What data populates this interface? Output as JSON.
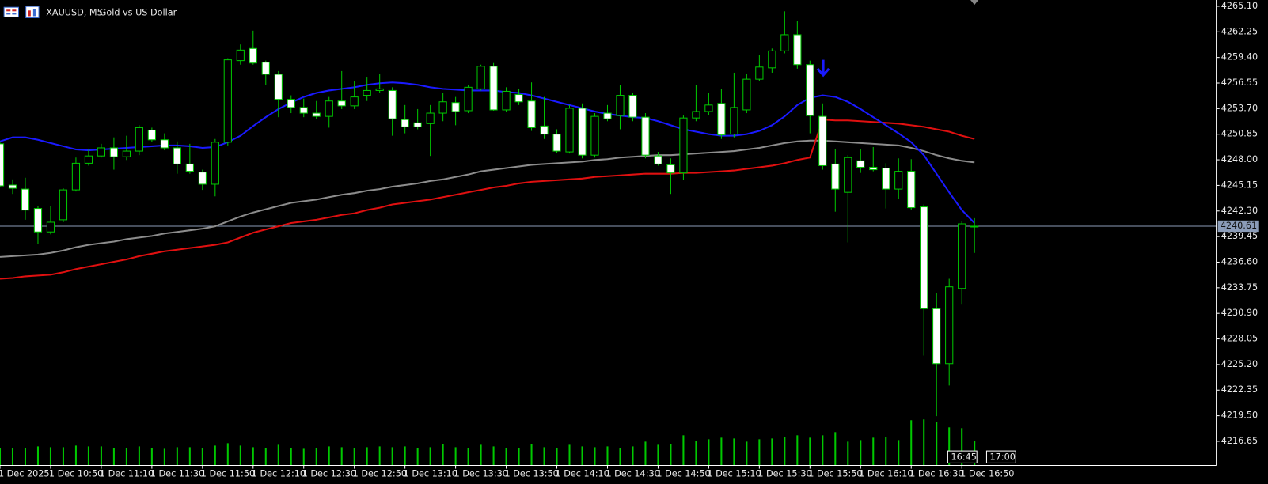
{
  "chart_data": {
    "type": "candlestick",
    "symbol": "XAUUSD, M5:",
    "description": "Gold vs US Dollar",
    "categories": [
      "1 Dec 2025",
      null,
      null,
      null,
      "1 Dec 10:50",
      null,
      null,
      null,
      "1 Dec 11:10",
      null,
      null,
      null,
      "1 Dec 11:30",
      null,
      null,
      null,
      "1 Dec 11:50",
      null,
      null,
      null,
      "1 Dec 12:10",
      null,
      null,
      null,
      "1 Dec 12:30",
      null,
      null,
      null,
      "1 Dec 12:50",
      null,
      null,
      null,
      "1 Dec 13:10",
      null,
      null,
      null,
      "1 Dec 13:30",
      null,
      null,
      null,
      "1 Dec 13:50",
      null,
      null,
      null,
      "1 Dec 14:10",
      null,
      null,
      null,
      "1 Dec 14:30",
      null,
      null,
      null,
      "1 Dec 14:50",
      null,
      null,
      null,
      "1 Dec 15:10",
      null,
      null,
      null,
      "1 Dec 15:30",
      null,
      null,
      null,
      "1 Dec 15:50",
      null,
      null,
      null,
      "1 Dec 16:10",
      null,
      null,
      null,
      "1 Dec 16:30",
      null,
      null,
      null,
      "1 Dec 16:50",
      null
    ],
    "open": [
      4249.78,
      4245.19,
      4244.74,
      4242.58,
      4239.97,
      4241.32,
      4244.65,
      4247.62,
      4248.43,
      4249.33,
      4248.34,
      4248.97,
      4251.31,
      4250.23,
      4249.33,
      4247.53,
      4246.63,
      4245.28,
      4249.96,
      4259.05,
      4260.4,
      4258.87,
      4257.52,
      4254.73,
      4253.83,
      4253.2,
      4252.84,
      4254.55,
      4254.01,
      4255.18,
      4255.72,
      4255.72,
      4252.48,
      4252.12,
      4252.03,
      4253.2,
      4254.37,
      4253.47,
      4255.9,
      4258.42,
      4253.56,
      4255.27,
      4254.55,
      4251.76,
      4250.86,
      4248.88,
      4253.74,
      4248.52,
      4253.2,
      4252.93,
      4255.18,
      4252.75,
      4248.43,
      4247.44,
      4246.54,
      4252.66,
      4253.38,
      4254.28,
      4250.86,
      4253.56,
      4256.98,
      4258.24,
      4260.13,
      4261.93,
      4258.6,
      4252.84,
      4247.53,
      4244.38,
      4247.89,
      4247.17,
      4247.08,
      4244.74,
      4246.72,
      4242.76,
      4231.42,
      4225.3,
      4233.67,
      4240.6
    ],
    "high": [
      4250.05,
      4245.82,
      4246.0,
      4242.85,
      4242.85,
      4244.83,
      4248.25,
      4249.15,
      4249.78,
      4250.5,
      4250.68,
      4251.85,
      4251.58,
      4250.95,
      4250.05,
      4249.78,
      4246.9,
      4250.32,
      4259.32,
      4260.85,
      4262.38,
      4259.05,
      4257.88,
      4255.18,
      4254.82,
      4254.55,
      4255.0,
      4257.88,
      4256.8,
      4257.25,
      4257.52,
      4256.08,
      4254.1,
      4253.65,
      4254.1,
      4255.45,
      4255.0,
      4256.35,
      4258.6,
      4258.78,
      4256.08,
      4255.9,
      4256.62,
      4255.0,
      4251.4,
      4254.1,
      4254.28,
      4253.2,
      4254.1,
      4256.35,
      4255.45,
      4253.2,
      4248.88,
      4248.16,
      4252.93,
      4256.35,
      4255.45,
      4255.9,
      4257.7,
      4257.52,
      4259.68,
      4260.4,
      4264.54,
      4263.46,
      4259.05,
      4254.28,
      4249.15,
      4248.52,
      4249.15,
      4249.42,
      4247.62,
      4248.16,
      4248.07,
      4243.03,
      4233.13,
      4234.75,
      4241.14,
      4241.5
    ],
    "low": [
      4244.92,
      4244.2,
      4241.32,
      4238.62,
      4239.7,
      4241.05,
      4244.47,
      4247.35,
      4248.25,
      4246.9,
      4247.98,
      4248.52,
      4249.96,
      4249.06,
      4246.45,
      4246.45,
      4244.65,
      4243.93,
      4249.6,
      4258.6,
      4258.6,
      4256.35,
      4252.75,
      4253.2,
      4252.75,
      4252.57,
      4251.58,
      4253.65,
      4253.65,
      4254.55,
      4255.45,
      4250.68,
      4250.95,
      4251.4,
      4248.43,
      4252.3,
      4251.85,
      4253.2,
      4255.72,
      4253.47,
      4253.38,
      4254.1,
      4251.22,
      4250.32,
      4248.79,
      4248.7,
      4248.16,
      4248.25,
      4252.3,
      4251.4,
      4252.3,
      4248.16,
      4247.35,
      4244.2,
      4245.73,
      4252.3,
      4253.02,
      4250.32,
      4250.5,
      4253.2,
      4256.8,
      4257.7,
      4259.86,
      4258.15,
      4250.95,
      4246.9,
      4242.22,
      4238.8,
      4246.54,
      4246.72,
      4242.58,
      4243.66,
      4242.4,
      4226.2,
      4219.45,
      4222.87,
      4231.87,
      4237.63
    ],
    "close": [
      4245.1,
      4244.83,
      4242.4,
      4239.97,
      4241.05,
      4244.65,
      4247.62,
      4248.43,
      4249.33,
      4248.34,
      4248.97,
      4251.58,
      4250.23,
      4249.33,
      4247.53,
      4246.72,
      4245.28,
      4249.96,
      4259.14,
      4260.22,
      4258.78,
      4257.52,
      4254.73,
      4253.83,
      4253.2,
      4252.84,
      4254.55,
      4254.01,
      4255.0,
      4255.72,
      4255.9,
      4252.57,
      4251.67,
      4251.67,
      4253.2,
      4254.46,
      4253.38,
      4256.08,
      4258.42,
      4253.56,
      4255.63,
      4254.46,
      4251.58,
      4250.86,
      4248.97,
      4253.74,
      4248.52,
      4252.84,
      4252.57,
      4255.18,
      4252.75,
      4248.52,
      4247.53,
      4246.54,
      4252.66,
      4253.38,
      4254.1,
      4250.77,
      4253.83,
      4256.98,
      4258.33,
      4260.13,
      4261.93,
      4258.6,
      4252.93,
      4247.35,
      4244.74,
      4248.25,
      4247.17,
      4246.9,
      4244.74,
      4246.72,
      4242.67,
      4231.42,
      4225.3,
      4233.85,
      4240.87,
      4240.61
    ],
    "bull_fill": "#000000",
    "bear_fill": "#ffffff",
    "candle_outline": "#00c800",
    "lines": [
      {
        "color": "#8c8c8c",
        "values": [
          4237.18,
          4237.27,
          4237.36,
          4237.45,
          4237.63,
          4237.9,
          4238.26,
          4238.53,
          4238.71,
          4238.89,
          4239.16,
          4239.34,
          4239.52,
          4239.79,
          4239.97,
          4240.15,
          4240.33,
          4240.6,
          4241.14,
          4241.68,
          4242.13,
          4242.49,
          4242.85,
          4243.21,
          4243.39,
          4243.57,
          4243.84,
          4244.11,
          4244.29,
          4244.56,
          4244.74,
          4245.01,
          4245.19,
          4245.37,
          4245.64,
          4245.82,
          4246.09,
          4246.36,
          4246.72,
          4246.9,
          4247.08,
          4247.26,
          4247.44,
          4247.53,
          4247.62,
          4247.71,
          4247.8,
          4247.98,
          4248.07,
          4248.25,
          4248.34,
          4248.43,
          4248.52,
          4248.52,
          4248.61,
          4248.7,
          4248.79,
          4248.88,
          4248.97,
          4249.15,
          4249.33,
          4249.6,
          4249.87,
          4250.05,
          4250.14,
          4250.14,
          4250.05,
          4249.96,
          4249.87,
          4249.78,
          4249.69,
          4249.6,
          4249.33,
          4248.97,
          4248.52,
          4248.16,
          4247.89,
          4247.71
        ]
      },
      {
        "color": "#e01010",
        "values": [
          4234.75,
          4234.84,
          4235.02,
          4235.11,
          4235.2,
          4235.47,
          4235.83,
          4236.1,
          4236.37,
          4236.64,
          4236.91,
          4237.27,
          4237.54,
          4237.81,
          4237.99,
          4238.17,
          4238.35,
          4238.53,
          4238.8,
          4239.34,
          4239.88,
          4240.24,
          4240.6,
          4240.96,
          4241.14,
          4241.32,
          4241.59,
          4241.86,
          4242.04,
          4242.4,
          4242.67,
          4243.03,
          4243.21,
          4243.39,
          4243.57,
          4243.84,
          4244.11,
          4244.38,
          4244.65,
          4244.92,
          4245.1,
          4245.37,
          4245.55,
          4245.64,
          4245.73,
          4245.82,
          4245.91,
          4246.09,
          4246.18,
          4246.27,
          4246.36,
          4246.45,
          4246.45,
          4246.45,
          4246.54,
          4246.54,
          4246.63,
          4246.72,
          4246.81,
          4246.99,
          4247.17,
          4247.35,
          4247.62,
          4247.98,
          4248.25,
          4252.48,
          4252.39,
          4252.39,
          4252.3,
          4252.21,
          4252.12,
          4252.03,
          4251.85,
          4251.67,
          4251.4,
          4251.13,
          4250.68,
          4250.32
        ]
      },
      {
        "color": "#1a1aff",
        "values": [
          4250.05,
          4250.5,
          4250.5,
          4250.23,
          4249.87,
          4249.51,
          4249.15,
          4249.06,
          4249.15,
          4249.24,
          4249.33,
          4249.42,
          4249.51,
          4249.6,
          4249.6,
          4249.51,
          4249.33,
          4249.42,
          4249.96,
          4250.68,
          4251.76,
          4252.75,
          4253.65,
          4254.37,
          4255.0,
          4255.45,
          4255.72,
          4255.9,
          4256.08,
          4256.35,
          4256.53,
          4256.62,
          4256.53,
          4256.35,
          4256.08,
          4255.9,
          4255.81,
          4255.72,
          4255.72,
          4255.72,
          4255.54,
          4255.45,
          4255.18,
          4254.82,
          4254.46,
          4254.1,
          4253.74,
          4253.38,
          4253.11,
          4252.93,
          4252.75,
          4252.66,
          4252.3,
          4251.85,
          4251.4,
          4251.13,
          4250.86,
          4250.68,
          4250.68,
          4250.86,
          4251.22,
          4251.85,
          4252.84,
          4254.1,
          4254.91,
          4255.18,
          4255.0,
          4254.46,
          4253.65,
          4252.75,
          4251.85,
          4250.95,
          4249.96,
          4248.52,
          4246.45,
          4244.38,
          4242.4,
          4240.96
        ]
      }
    ],
    "volume": {
      "color": "#00c800",
      "values": [
        22,
        22,
        22,
        24,
        23,
        23,
        25,
        24,
        24,
        22,
        22,
        24,
        22,
        21,
        23,
        23,
        22,
        25,
        28,
        25,
        23,
        22,
        26,
        22,
        21,
        22,
        24,
        23,
        22,
        23,
        24,
        23,
        24,
        22,
        23,
        27,
        23,
        22,
        26,
        24,
        22,
        22,
        27,
        23,
        22,
        26,
        24,
        23,
        24,
        22,
        24,
        30,
        26,
        27,
        38,
        31,
        33,
        35,
        34,
        30,
        33,
        34,
        36,
        38,
        35,
        38,
        42,
        30,
        32,
        35,
        36,
        32,
        57,
        58,
        55,
        48,
        47,
        31
      ]
    },
    "last_price": {
      "value": 4240.61,
      "color": "#8b9cb8"
    },
    "time_markers": [
      "16:45",
      "17:00"
    ],
    "ylim": [
      4212.7,
      4265.8
    ],
    "yticks": [
      {
        "value": 4265.1,
        "label": "4265.10"
      },
      4262.25,
      {
        "value": 4259.4,
        "label": "4259.40"
      },
      4256.55,
      {
        "value": 4253.7,
        "label": "4253.70"
      },
      4250.85,
      {
        "value": 4248,
        "label": "4248.00"
      },
      4245.15,
      {
        "value": 4242.3,
        "label": "4242.30"
      },
      4239.45,
      {
        "value": 4236.6,
        "label": "4236.60"
      },
      4233.75,
      {
        "value": 4230.9,
        "label": "4230.90"
      },
      4228.05,
      {
        "value": 4225.2,
        "label": "4225.20"
      },
      4222.35,
      {
        "value": 4219.5,
        "label": "4219.50"
      },
      4216.65
    ]
  }
}
